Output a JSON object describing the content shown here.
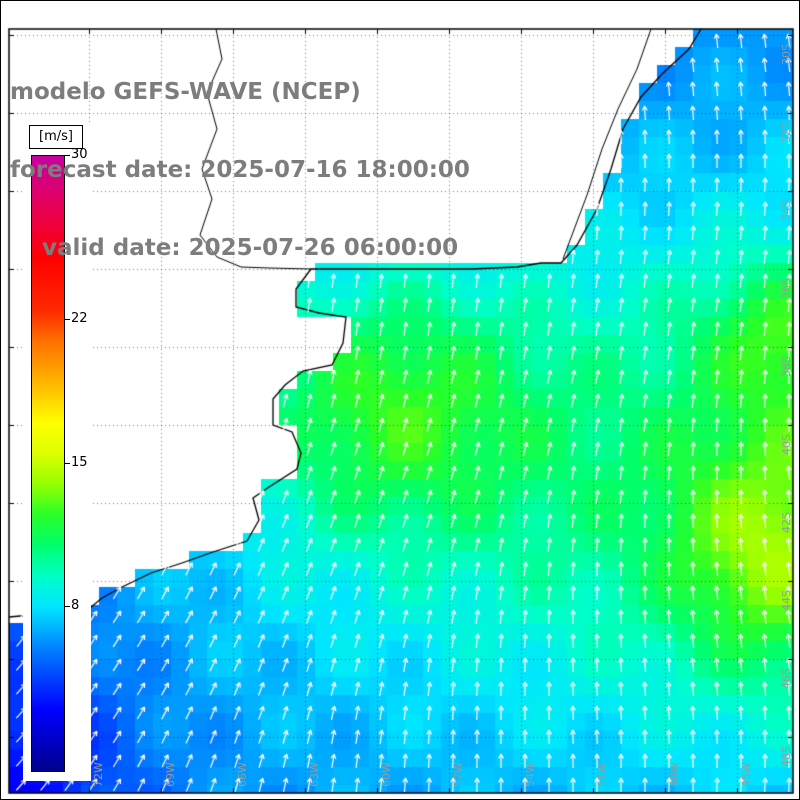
{
  "header": {
    "line1": "modelo GEFS-WAVE (NCEP)",
    "line2": "forecast date: 2025-07-16 18:00:00",
    "line3": "    valid date: 2025-07-26 06:00:00",
    "text_color": "#7d7d7d"
  },
  "colorbar": {
    "unit": "[m/s]",
    "min": 0,
    "max": 30,
    "ticks": [
      {
        "label": "30",
        "value": 30
      },
      {
        "label": "22",
        "value": 22
      },
      {
        "label": "15",
        "value": 15
      },
      {
        "label": "8",
        "value": 8
      }
    ],
    "stops": [
      {
        "value": 0,
        "color": "#00008c"
      },
      {
        "value": 3,
        "color": "#0000ff"
      },
      {
        "value": 6,
        "color": "#0082ff"
      },
      {
        "value": 8,
        "color": "#00e6ff"
      },
      {
        "value": 9.5,
        "color": "#00ffc8"
      },
      {
        "value": 11,
        "color": "#00ff6e"
      },
      {
        "value": 12.5,
        "color": "#28ff28"
      },
      {
        "value": 14,
        "color": "#96ff00"
      },
      {
        "value": 15.5,
        "color": "#dcff00"
      },
      {
        "value": 17,
        "color": "#ffff00"
      },
      {
        "value": 19,
        "color": "#ffb400"
      },
      {
        "value": 21,
        "color": "#ff6e00"
      },
      {
        "value": 22.5,
        "color": "#ff2800"
      },
      {
        "value": 25,
        "color": "#ff0000"
      },
      {
        "value": 27,
        "color": "#eb0046"
      },
      {
        "value": 30,
        "color": "#c800a0"
      }
    ]
  },
  "map": {
    "lon_labels": [
      "72W",
      "69W",
      "66W",
      "63W",
      "60W",
      "57W",
      "54W",
      "51W",
      "48W",
      "45W"
    ],
    "lat_labels": [
      "30S",
      "32S",
      "34S",
      "36S",
      "38S",
      "40S",
      "42S",
      "44S",
      "46S",
      "48S"
    ],
    "label_color": "#9a9a9a",
    "grid_color": "rgba(0,0,0,0.5)",
    "coast_color": "#000000",
    "land_color": "#ffffff",
    "arrow_color": "#ffffff",
    "frame_color": "#000000"
  }
}
